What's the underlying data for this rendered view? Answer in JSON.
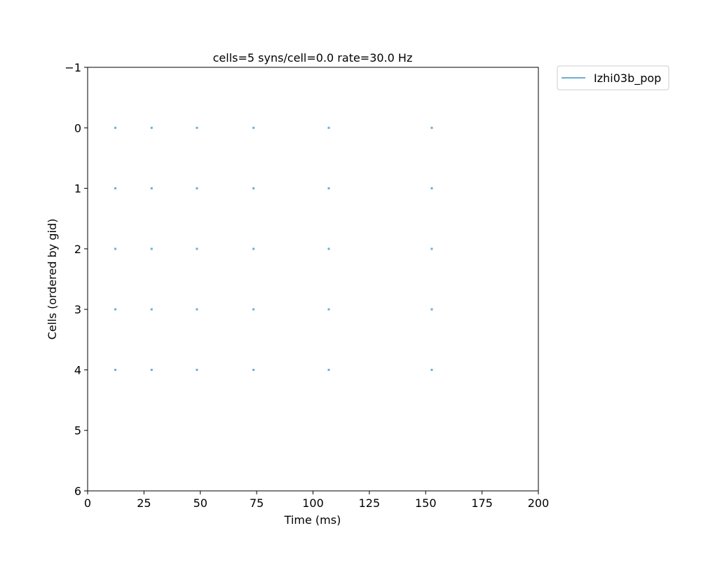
{
  "chart_data": {
    "type": "scatter",
    "title": "cells=5   syns/cell=0.0   rate=30.0 Hz",
    "xlabel": "Time (ms)",
    "ylabel": "Cells (ordered by gid)",
    "xlim": [
      0,
      200
    ],
    "ylim": [
      -1,
      6
    ],
    "y_inverted": true,
    "xticks": [
      0,
      25,
      50,
      75,
      100,
      125,
      150,
      175,
      200
    ],
    "yticks": [
      -1,
      0,
      1,
      2,
      3,
      4,
      5,
      6
    ],
    "ytick_labels": [
      "−1",
      "0",
      "1",
      "2",
      "3",
      "4",
      "5",
      "6"
    ],
    "grid": false,
    "legend_position": "outside-top-right",
    "series": [
      {
        "name": "Izhi03b_pop",
        "color": "#6BAED6",
        "cells": [
          0,
          1,
          2,
          3,
          4
        ],
        "spike_times": [
          12.3,
          28.4,
          48.5,
          73.6,
          107.0,
          152.7
        ]
      }
    ]
  }
}
